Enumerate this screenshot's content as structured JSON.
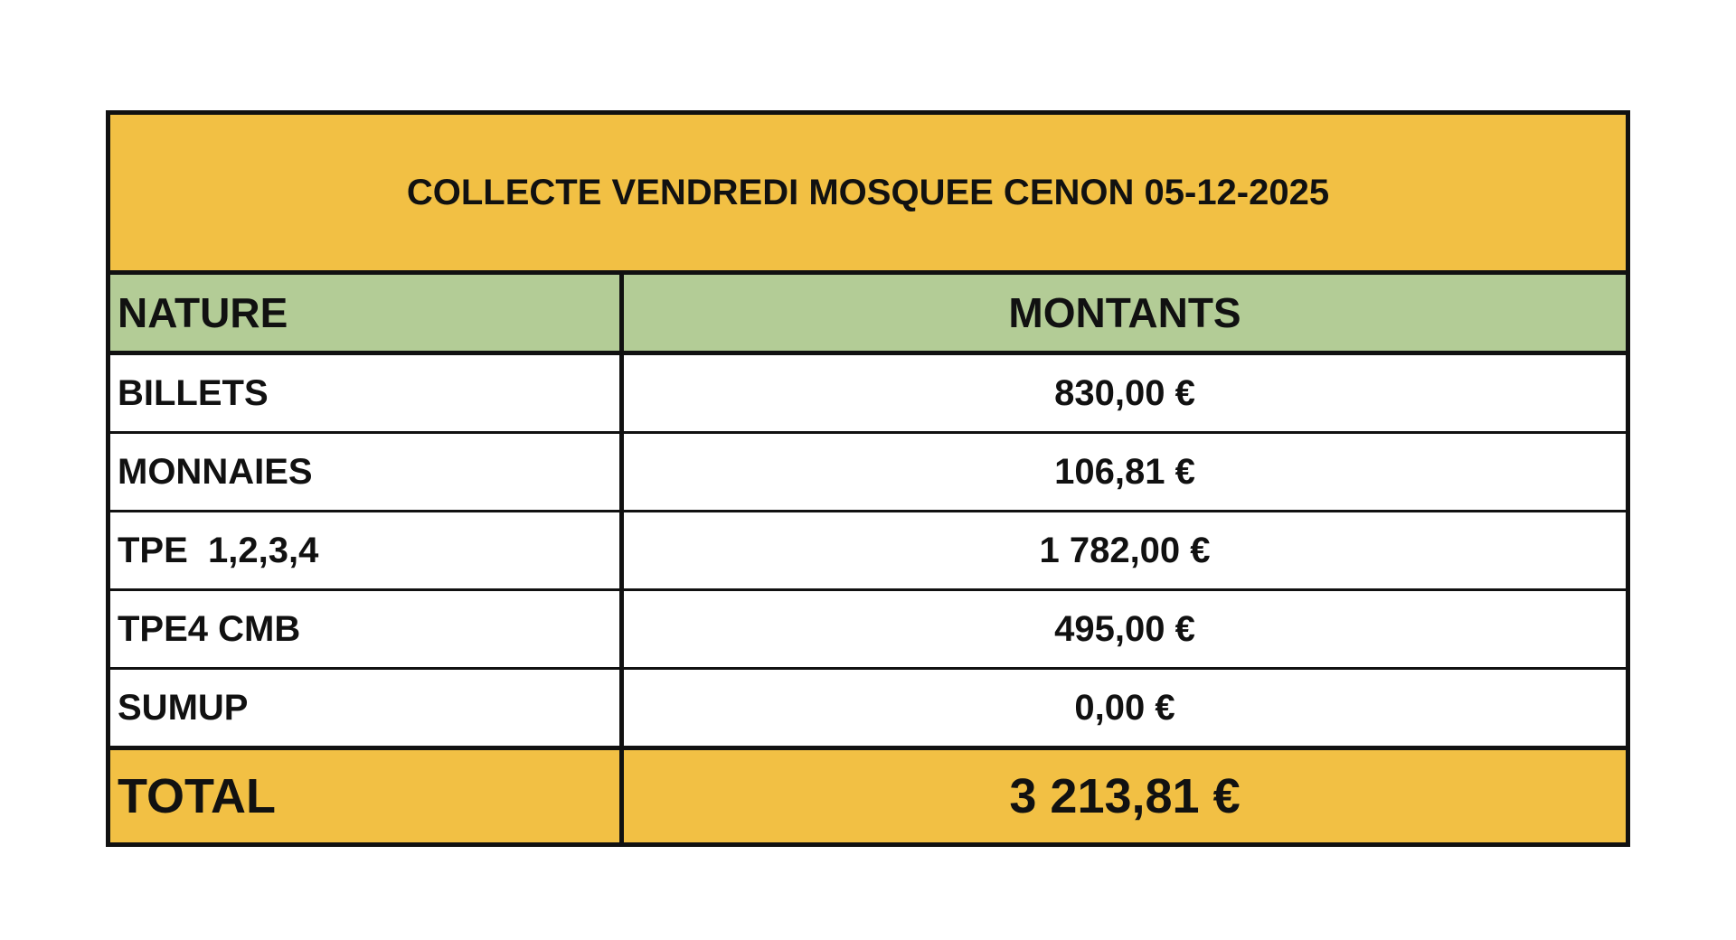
{
  "title": "COLLECTE VENDREDI MOSQUEE CENON 05-12-2025",
  "headers": {
    "nature": "NATURE",
    "montants": "MONTANTS"
  },
  "rows": [
    {
      "nature": "BILLETS",
      "montant": "830,00 €"
    },
    {
      "nature": "MONNAIES",
      "montant": "106,81 €"
    },
    {
      "nature": "TPE  1,2,3,4",
      "montant": "1 782,00 €"
    },
    {
      "nature": "TPE4 CMB",
      "montant": "495,00 €"
    },
    {
      "nature": "SUMUP",
      "montant": "0,00 €"
    }
  ],
  "total": {
    "label": "TOTAL",
    "value": "3 213,81 €"
  },
  "colors": {
    "title_bg": "#f2c044",
    "header_bg": "#b3cc96",
    "total_bg": "#f2c044"
  }
}
